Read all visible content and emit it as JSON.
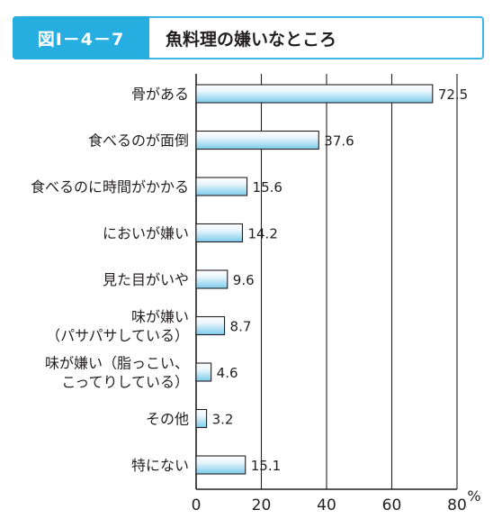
{
  "header": {
    "figure_label": "図Ⅰ－4－7",
    "title": "魚料理の嫌いなところ"
  },
  "chart_data": {
    "type": "bar",
    "orientation": "horizontal",
    "title": "魚料理の嫌いなところ",
    "unit_label": "%",
    "xlim": [
      0,
      80
    ],
    "ticks": [
      0,
      20,
      40,
      60,
      80
    ],
    "grid": true,
    "categories": [
      [
        "骨がある"
      ],
      [
        "食べるのが面倒"
      ],
      [
        "食べるのに時間がかかる"
      ],
      [
        "においが嫌い"
      ],
      [
        "見た目がいや"
      ],
      [
        "味が嫌い",
        "（パサパサしている）"
      ],
      [
        "味が嫌い（脂っこい、",
        "こってりしている）"
      ],
      [
        "その他"
      ],
      [
        "特にない"
      ]
    ],
    "values": [
      72.5,
      37.6,
      15.6,
      14.2,
      9.6,
      8.7,
      4.6,
      3.2,
      15.1
    ],
    "value_labels": [
      "72.5",
      "37.6",
      "15.6",
      "14.2",
      "9.6",
      "8.7",
      "4.6",
      "3.2",
      "15.1"
    ],
    "colors": {
      "bar_light": "#eaf6fc",
      "bar_dark": "#7ccbeb",
      "bar_stroke": "#231f20",
      "grid": "#231f20",
      "accent": "#27aee0"
    }
  }
}
